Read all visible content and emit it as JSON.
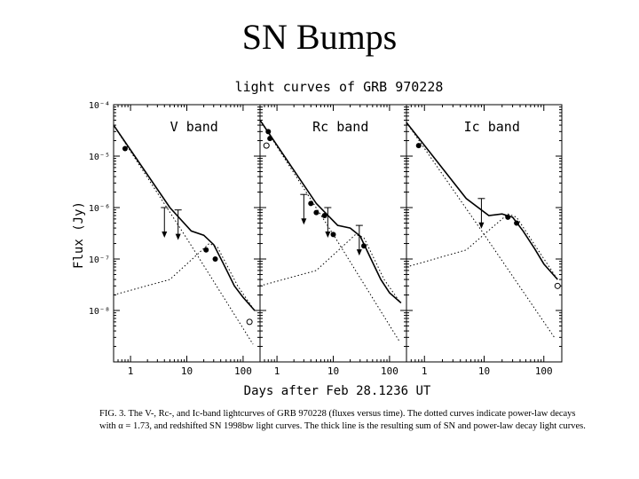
{
  "slide": {
    "title": "SN Bumps"
  },
  "figure": {
    "title": "light curves of GRB 970228",
    "ylabel": "Flux (Jy)",
    "xlabel": "Days after Feb 28.1236 UT",
    "caption_line1": "FIG. 3.  The V-, Rc-, and Ic-band lightcurves of GRB 970228 (fluxes versus time). The dotted curves indicate power-law decays",
    "caption_line2": "with α = 1.73, and redshifted SN 1998bw light curves. The thick line is the resulting sum of SN and power-law decay light curves."
  },
  "chart_data": [
    {
      "type": "scatter",
      "title": "V band",
      "xscale": "log",
      "yscale": "log",
      "xlim": [
        0.5,
        200
      ],
      "ylim": [
        1e-09,
        0.0001
      ],
      "y_ticks": [
        "10⁻⁴",
        "10⁻⁵",
        "10⁻⁶",
        "10⁻⁷",
        "10⁻⁸"
      ],
      "x_ticks": [
        "1",
        "10",
        "100"
      ],
      "points": [
        {
          "x": 0.8,
          "y": 1.4e-05
        },
        {
          "x": 22,
          "y": 1.5e-07
        },
        {
          "x": 32,
          "y": 1e-07
        }
      ],
      "upper_limits": [
        {
          "x": 4,
          "y": 1e-06
        },
        {
          "x": 7,
          "y": 9e-07
        }
      ],
      "open_points": [
        {
          "x": 130,
          "y": 6e-09
        }
      ],
      "curves": {
        "power_law": [
          [
            0.5,
            4e-05
          ],
          [
            10,
            2.5e-07
          ],
          [
            150,
            2.2e-09
          ]
        ],
        "supernova": [
          [
            0.5,
            2e-08
          ],
          [
            5,
            4e-08
          ],
          [
            15,
            1.2e-07
          ],
          [
            25,
            2e-07
          ],
          [
            35,
            1.7e-07
          ],
          [
            80,
            3e-08
          ],
          [
            150,
            1.1e-08
          ]
        ],
        "sum": [
          [
            0.5,
            4e-05
          ],
          [
            5,
            1e-06
          ],
          [
            12,
            3.5e-07
          ],
          [
            20,
            2.9e-07
          ],
          [
            30,
            1.9e-07
          ],
          [
            45,
            8e-08
          ],
          [
            70,
            3e-08
          ],
          [
            100,
            1.8e-08
          ],
          [
            160,
            1e-08
          ]
        ]
      }
    },
    {
      "type": "scatter",
      "title": "Rc band",
      "xscale": "log",
      "yscale": "log",
      "xlim": [
        0.5,
        200
      ],
      "ylim": [
        1e-09,
        0.0001
      ],
      "x_ticks": [
        "1",
        "10",
        "100"
      ],
      "points": [
        {
          "x": 0.7,
          "y": 3e-05
        },
        {
          "x": 0.75,
          "y": 2.2e-05
        },
        {
          "x": 4,
          "y": 1.2e-06
        },
        {
          "x": 5,
          "y": 8e-07
        },
        {
          "x": 7,
          "y": 7e-07
        },
        {
          "x": 10,
          "y": 3e-07
        },
        {
          "x": 35,
          "y": 1.8e-07
        }
      ],
      "upper_limits": [
        {
          "x": 3,
          "y": 1.8e-06
        },
        {
          "x": 8,
          "y": 1e-06
        },
        {
          "x": 29,
          "y": 4.5e-07
        }
      ],
      "open_points": [
        {
          "x": 0.65,
          "y": 1.6e-05
        }
      ],
      "curves": {
        "power_law": [
          [
            0.5,
            5e-05
          ],
          [
            10,
            3e-07
          ],
          [
            150,
            2.5e-09
          ]
        ],
        "supernova": [
          [
            0.5,
            3e-08
          ],
          [
            5,
            6e-08
          ],
          [
            15,
            1.8e-07
          ],
          [
            25,
            3e-07
          ],
          [
            35,
            2.6e-07
          ],
          [
            80,
            4e-08
          ],
          [
            150,
            1.5e-08
          ]
        ],
        "sum": [
          [
            0.5,
            5e-05
          ],
          [
            5,
            1.2e-06
          ],
          [
            12,
            4.5e-07
          ],
          [
            20,
            4e-07
          ],
          [
            30,
            2.8e-07
          ],
          [
            45,
            1.1e-07
          ],
          [
            70,
            4e-08
          ],
          [
            100,
            2.2e-08
          ],
          [
            160,
            1.4e-08
          ]
        ]
      }
    },
    {
      "type": "scatter",
      "title": "Ic band",
      "xscale": "log",
      "yscale": "log",
      "xlim": [
        0.5,
        200
      ],
      "ylim": [
        1e-09,
        0.0001
      ],
      "x_ticks": [
        "1",
        "10",
        "100"
      ],
      "points": [
        {
          "x": 0.8,
          "y": 1.6e-05
        },
        {
          "x": 25,
          "y": 6.5e-07
        },
        {
          "x": 35,
          "y": 5e-07
        }
      ],
      "upper_limits": [
        {
          "x": 9,
          "y": 1.5e-06
        }
      ],
      "open_points": [
        {
          "x": 170,
          "y": 3e-08
        }
      ],
      "curves": {
        "power_law": [
          [
            0.5,
            4.5e-05
          ],
          [
            10,
            3e-07
          ],
          [
            150,
            3e-09
          ]
        ],
        "supernova": [
          [
            0.5,
            7e-08
          ],
          [
            5,
            1.5e-07
          ],
          [
            15,
            4.5e-07
          ],
          [
            25,
            7.5e-07
          ],
          [
            35,
            6.5e-07
          ],
          [
            80,
            1.5e-07
          ],
          [
            170,
            4e-08
          ]
        ],
        "sum": [
          [
            0.5,
            4.5e-05
          ],
          [
            5,
            1.5e-06
          ],
          [
            12,
            7e-07
          ],
          [
            20,
            7.5e-07
          ],
          [
            30,
            6.5e-07
          ],
          [
            45,
            3.5e-07
          ],
          [
            70,
            1.6e-07
          ],
          [
            100,
            8e-08
          ],
          [
            170,
            4e-08
          ]
        ]
      }
    }
  ]
}
